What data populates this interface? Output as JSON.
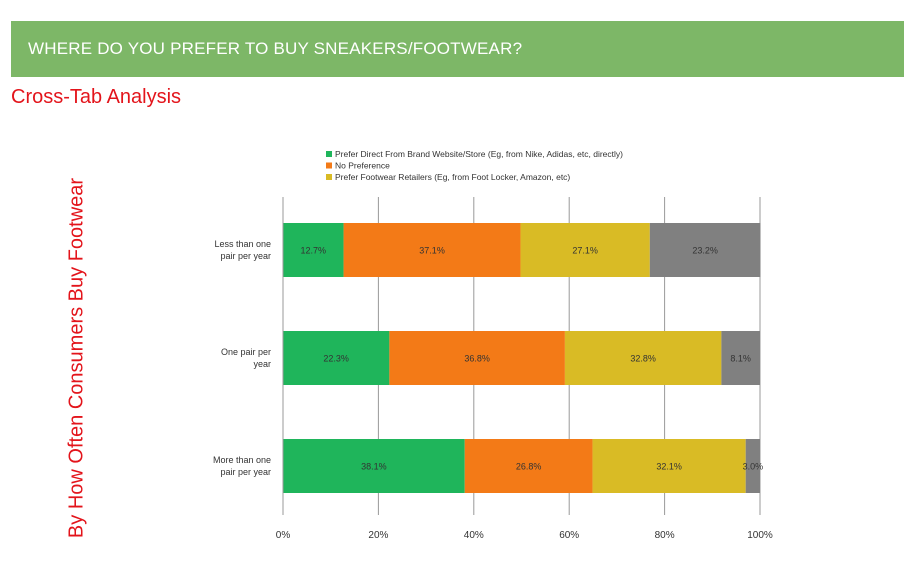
{
  "header": {
    "title": "WHERE DO YOU PREFER TO BUY SNEAKERS/FOOTWEAR?"
  },
  "subtitle": "Cross-Tab Analysis",
  "side_label": "By How Often Consumers Buy Footwear",
  "chart_data": {
    "type": "bar",
    "orientation": "horizontal",
    "stacked": true,
    "percent_scale": true,
    "categories": [
      "Less than one pair per year",
      "One pair per year",
      "More than one pair per year"
    ],
    "category_lines": [
      [
        "Less than one",
        "pair per year"
      ],
      [
        "One pair per",
        "year"
      ],
      [
        "More than one",
        "pair per year"
      ]
    ],
    "series": [
      {
        "name": "Prefer Direct From Brand Website/Store (Eg, from Nike, Adidas, etc, directly)",
        "values": [
          12.7,
          22.3,
          38.1
        ],
        "labels": [
          "12.7%",
          "22.3%",
          "38.1%"
        ],
        "color": "#1fb55b"
      },
      {
        "name": "No Preference",
        "values": [
          37.1,
          36.8,
          26.8
        ],
        "labels": [
          "37.1%",
          "36.8%",
          "26.8%"
        ],
        "color": "#f37a17"
      },
      {
        "name": "Prefer Footwear Retailers (Eg, from Foot Locker, Amazon, etc)",
        "values": [
          27.1,
          32.8,
          32.1
        ],
        "labels": [
          "27.1%",
          "32.8%",
          "32.1%"
        ],
        "color": "#d9bb25"
      },
      {
        "name": "",
        "values": [
          23.2,
          8.1,
          3.0
        ],
        "labels": [
          "23.2%",
          "8.1%",
          "3.0%"
        ],
        "color": "#808080"
      }
    ],
    "x_ticks": [
      0,
      20,
      40,
      60,
      80,
      100
    ],
    "x_tick_labels": [
      "0%",
      "20%",
      "40%",
      "60%",
      "80%",
      "100%"
    ],
    "xlim": [
      0,
      100
    ],
    "grid": true,
    "legend_position": "top"
  }
}
